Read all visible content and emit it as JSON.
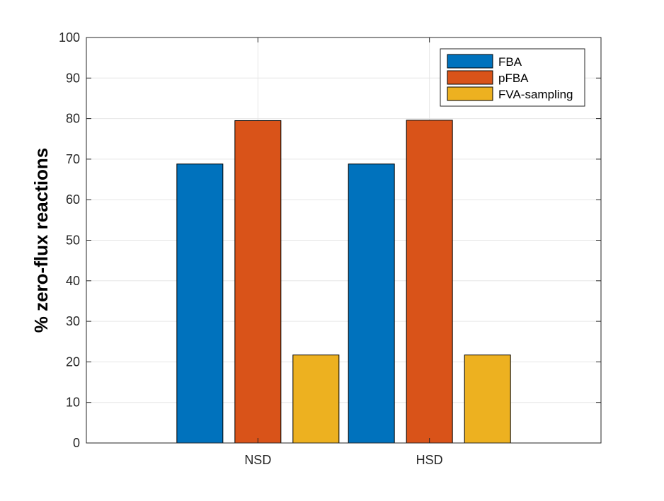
{
  "chart_data": {
    "type": "bar",
    "title": "",
    "xlabel": "",
    "ylabel": "% zero-flux reactions",
    "categories": [
      "NSD",
      "HSD"
    ],
    "series": [
      {
        "name": "FBA",
        "color": "#0072BD",
        "values": [
          68.8,
          68.8
        ]
      },
      {
        "name": "pFBA",
        "color": "#D95319",
        "values": [
          79.5,
          79.6
        ]
      },
      {
        "name": "FVA-sampling",
        "color": "#EDB120",
        "values": [
          21.7,
          21.7
        ]
      }
    ],
    "ylim": [
      0,
      100
    ],
    "yticks": [
      0,
      10,
      20,
      30,
      40,
      50,
      60,
      70,
      80,
      90,
      100
    ],
    "grid": true,
    "legend_position": "top-right"
  }
}
